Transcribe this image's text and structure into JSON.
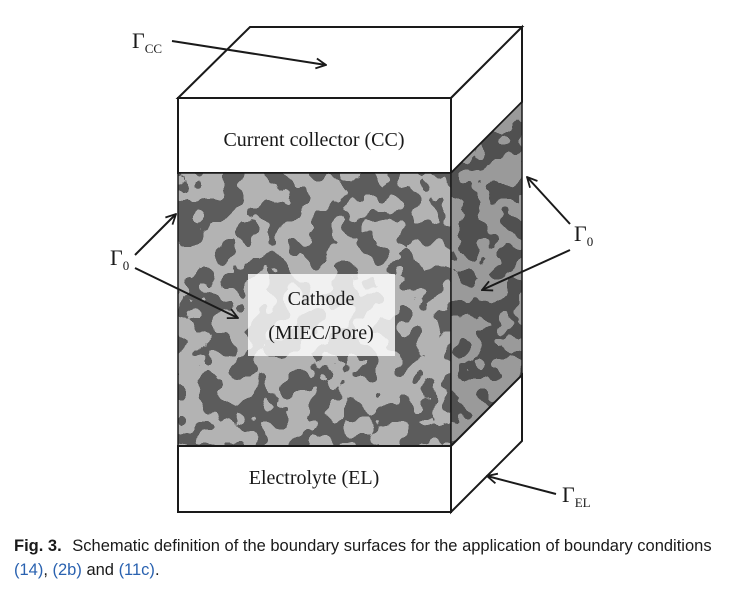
{
  "diagram": {
    "top_face": {
      "label": "Γ",
      "subscript": "CC"
    },
    "current_collector": {
      "label": "Current collector (CC)"
    },
    "cathode": {
      "line1": "Cathode",
      "line2": "(MIEC/Pore)"
    },
    "electrolyte": {
      "label": "Electrolyte (EL)"
    },
    "side_left": {
      "label": "Γ",
      "subscript": "0"
    },
    "side_right": {
      "label": "Γ",
      "subscript": "0"
    },
    "bottom_face": {
      "label": "Γ",
      "subscript": "EL"
    },
    "colors": {
      "pore": "#5c5c5c",
      "miec": "#b3b3b3",
      "outline": "#1a1a1a",
      "arrow": "#1a1a1a"
    }
  },
  "caption": {
    "fig_label": "Fig. 3.",
    "text": "Schematic definition of the boundary surfaces for the application of boundary conditions",
    "ref1": "(14)",
    "sep1": ", ",
    "ref2": "(2b)",
    "sep2": " and ",
    "ref3": "(11c)",
    "end": "."
  }
}
